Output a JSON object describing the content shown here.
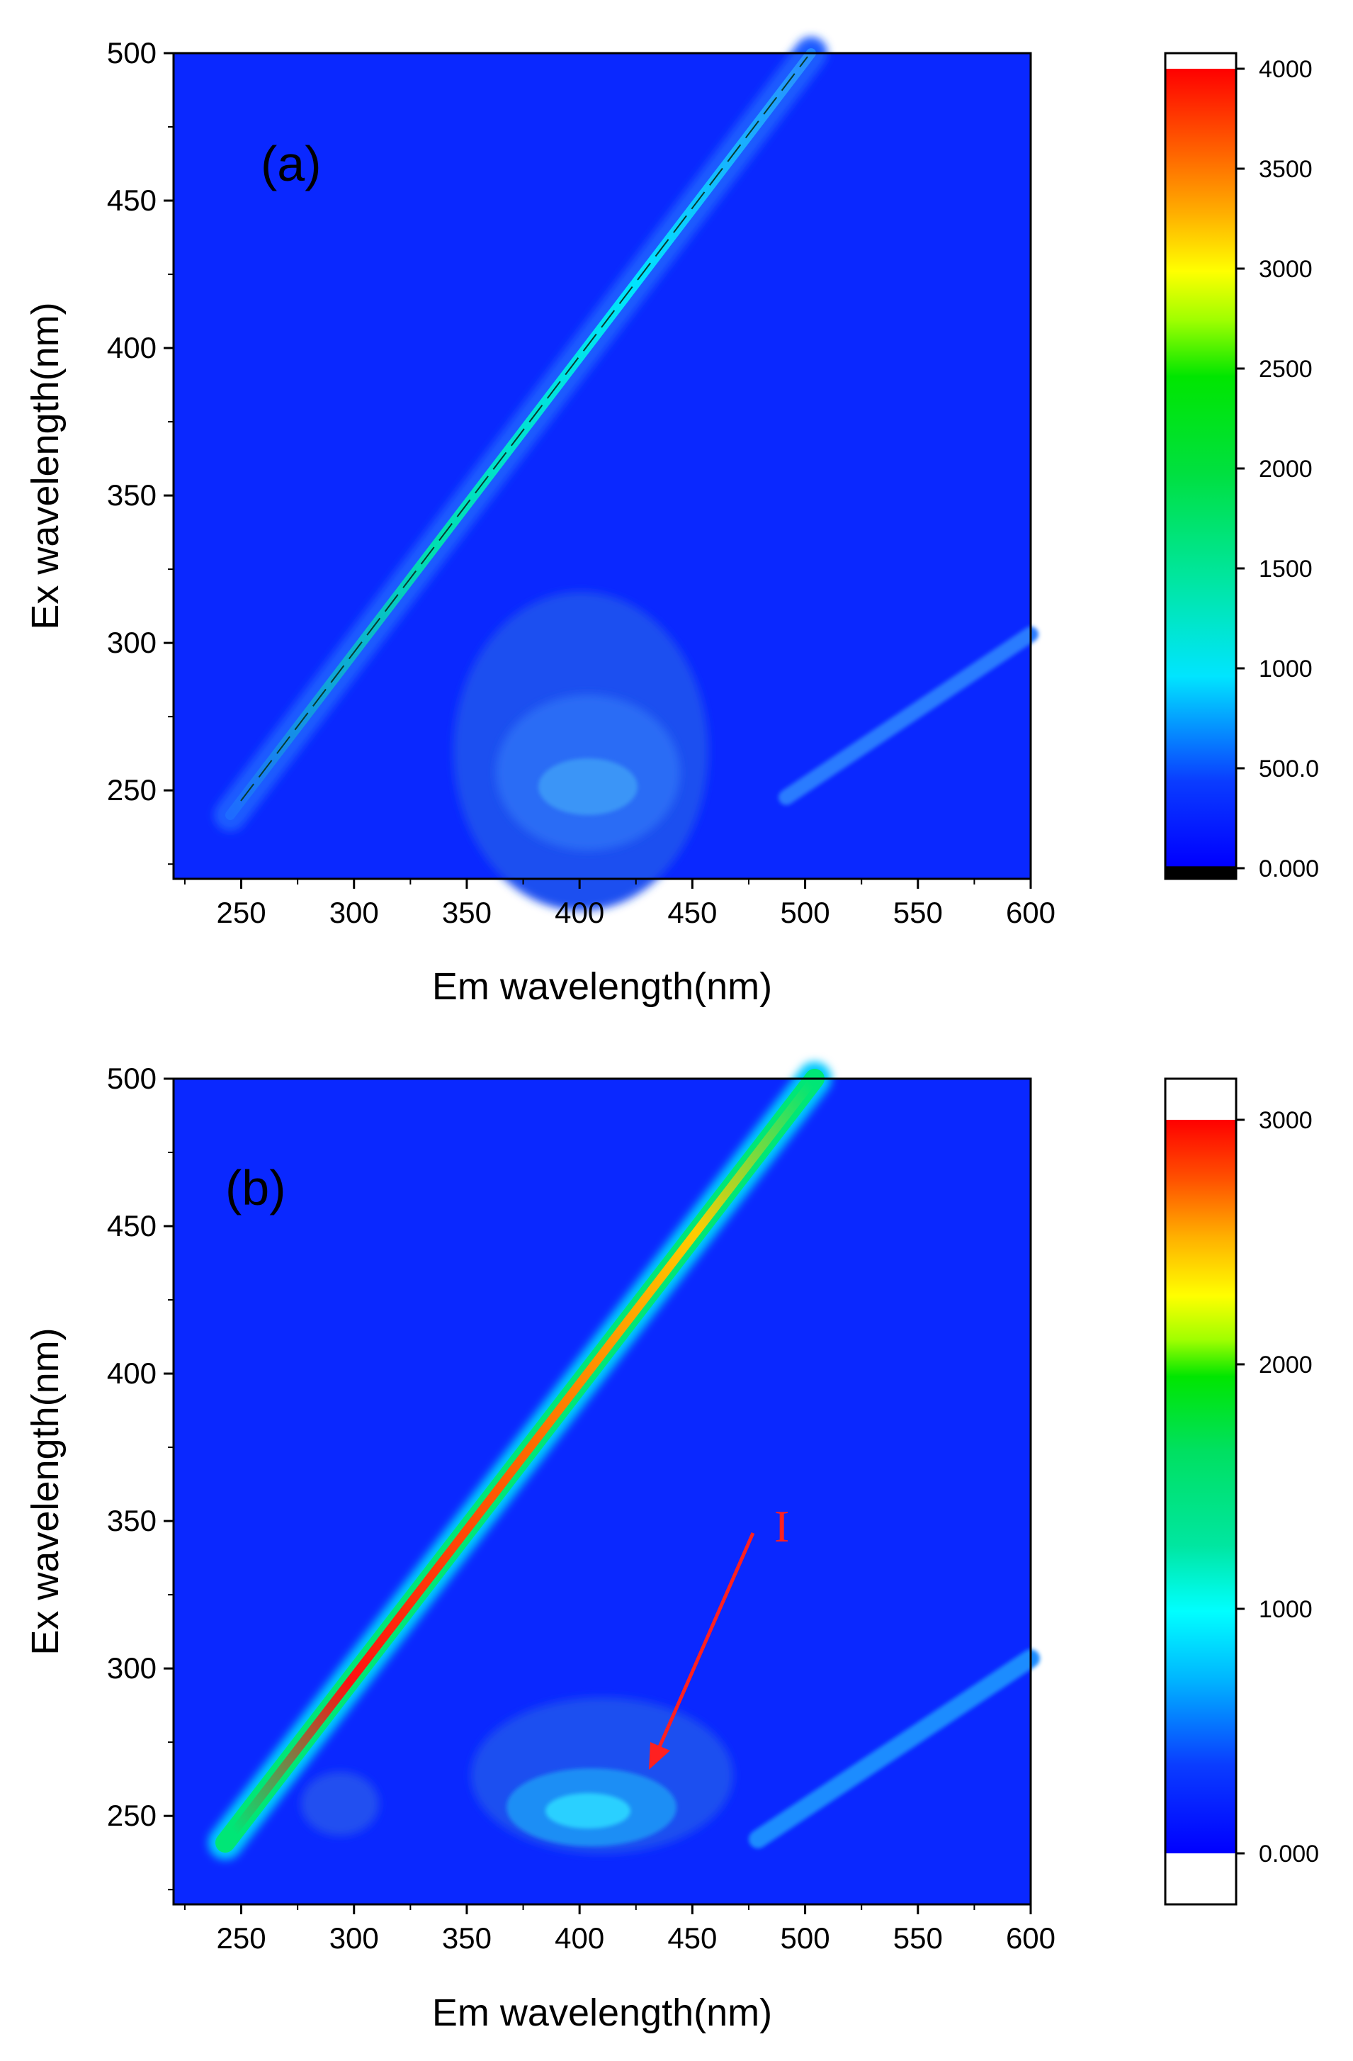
{
  "colors": {
    "background_blue": "#0a28ff",
    "cyan": "#00e5ff",
    "green": "#00e676",
    "yellow": "#ffff00",
    "red": "#ff1010",
    "arrow": "#ff2020"
  },
  "chart_data": [
    {
      "type": "heatmap",
      "panel_label": "(a)",
      "xlabel": "Em wavelength(nm)",
      "ylabel": "Ex wavelength(nm)",
      "xlim": [
        220,
        600
      ],
      "ylim": [
        220,
        500
      ],
      "x_ticks": [
        "250",
        "300",
        "350",
        "400",
        "450",
        "500",
        "550",
        "600"
      ],
      "y_ticks": [
        "250",
        "300",
        "350",
        "400",
        "450",
        "500"
      ],
      "colorbar_ticks": [
        "0.000",
        "500.0",
        "1000",
        "1500",
        "2000",
        "2500",
        "3000",
        "3500",
        "4000"
      ],
      "colorbar_range": [
        0,
        4000
      ],
      "features": [
        {
          "name": "rayleigh-scatter-line",
          "em_start": 245,
          "ex_start": 245,
          "em_end": 500,
          "ex_end": 500,
          "peak_intensity": 1000
        },
        {
          "name": "second-order-scatter-line",
          "em_start": 490,
          "ex_start": 245,
          "em_end": 600,
          "ex_end": 300,
          "peak_intensity": 350
        },
        {
          "name": "fluorescence-peak",
          "em": 400,
          "ex": 250,
          "peak_intensity": 600
        }
      ]
    },
    {
      "type": "heatmap",
      "panel_label": "(b)",
      "xlabel": "Em wavelength(nm)",
      "ylabel": "Ex wavelength(nm)",
      "xlim": [
        220,
        600
      ],
      "ylim": [
        220,
        500
      ],
      "x_ticks": [
        "250",
        "300",
        "350",
        "400",
        "450",
        "500",
        "550",
        "600"
      ],
      "y_ticks": [
        "250",
        "300",
        "350",
        "400",
        "450",
        "500"
      ],
      "colorbar_ticks": [
        "0.000",
        "1000",
        "2000",
        "3000"
      ],
      "colorbar_range": [
        0,
        3000
      ],
      "annotation": {
        "text": "I",
        "arrow_from_em": 475,
        "arrow_from_ex": 347,
        "arrow_to_em": 430,
        "arrow_to_ex": 265
      },
      "features": [
        {
          "name": "rayleigh-scatter-line",
          "em_start": 240,
          "ex_start": 240,
          "em_end": 500,
          "ex_end": 500,
          "peak_intensity": 3000
        },
        {
          "name": "second-order-scatter-line",
          "em_start": 480,
          "ex_start": 240,
          "em_end": 600,
          "ex_end": 305,
          "peak_intensity": 700
        },
        {
          "name": "fluorescence-peak",
          "em": 405,
          "ex": 253,
          "peak_intensity": 800
        }
      ]
    }
  ]
}
